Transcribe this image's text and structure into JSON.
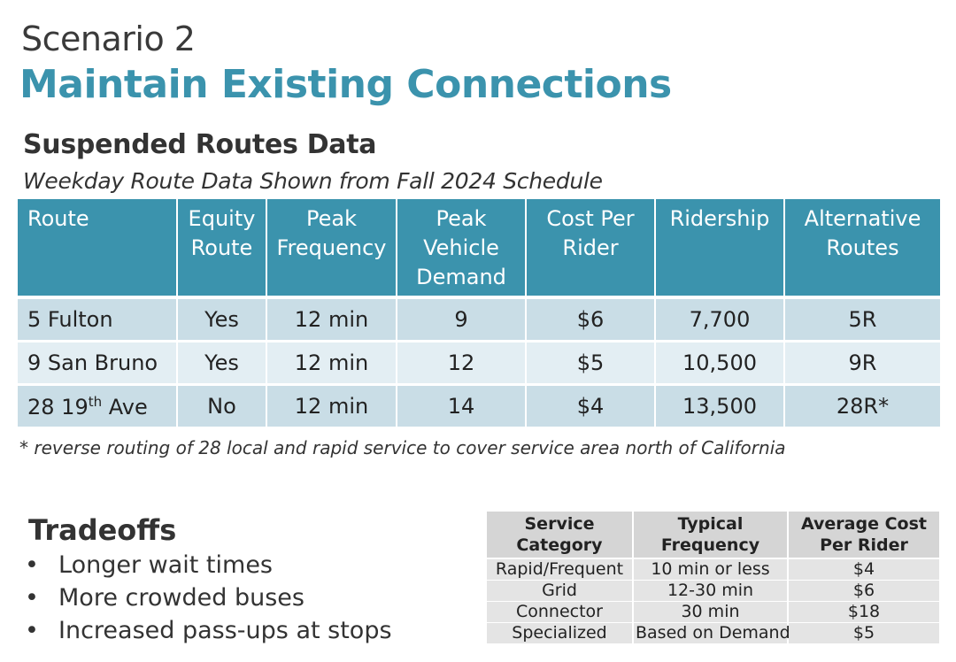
{
  "header": {
    "scenario": "Scenario 2",
    "title": "Maintain Existing Connections"
  },
  "suspended": {
    "title": "Suspended Routes Data",
    "subtitle": "Weekday Route Data Shown from Fall 2024 Schedule",
    "columns": [
      "Route",
      "Equity\nRoute",
      "Peak\nFrequency",
      "Peak\nVehicle\nDemand",
      "Cost Per\nRider",
      "Ridership",
      "Alternative\nRoutes"
    ],
    "rows": [
      {
        "route": "5 Fulton",
        "equity": "Yes",
        "frequency": "12 min",
        "vehicles": "9",
        "cost": "$6",
        "ridership": "7,700",
        "alternatives": "5R"
      },
      {
        "route": "9 San Bruno",
        "equity": "Yes",
        "frequency": "12 min",
        "vehicles": "12",
        "cost": "$5",
        "ridership": "10,500",
        "alternatives": "9R"
      },
      {
        "route_prefix": "28 19",
        "route_sup": "th",
        "route_suffix": " Ave",
        "equity": "No",
        "frequency": "12 min",
        "vehicles": "14",
        "cost": "$4",
        "ridership": "13,500",
        "alternatives": "28R*"
      }
    ],
    "footnote": "* reverse routing of 28 local and rapid service to cover service area north of California"
  },
  "tradeoffs": {
    "title": "Tradeoffs",
    "items": [
      "Longer wait times",
      "More crowded buses",
      "Increased pass-ups at stops"
    ]
  },
  "service": {
    "columns": [
      "Service\nCategory",
      "Typical\nFrequency",
      "Average Cost\nPer Rider"
    ],
    "rows": [
      [
        "Rapid/Frequent",
        "10 min or less",
        "$4"
      ],
      [
        "Grid",
        "12-30 min",
        "$6"
      ],
      [
        "Connector",
        "30 min",
        "$18"
      ],
      [
        "Specialized",
        "Based on Demand",
        "$5"
      ]
    ]
  },
  "colors": {
    "accent": "#3b93ad",
    "row_dark": "#c9dde6",
    "row_light": "#e3eef3",
    "gray_header": "#d5d5d5",
    "gray_body": "#e4e4e4"
  }
}
